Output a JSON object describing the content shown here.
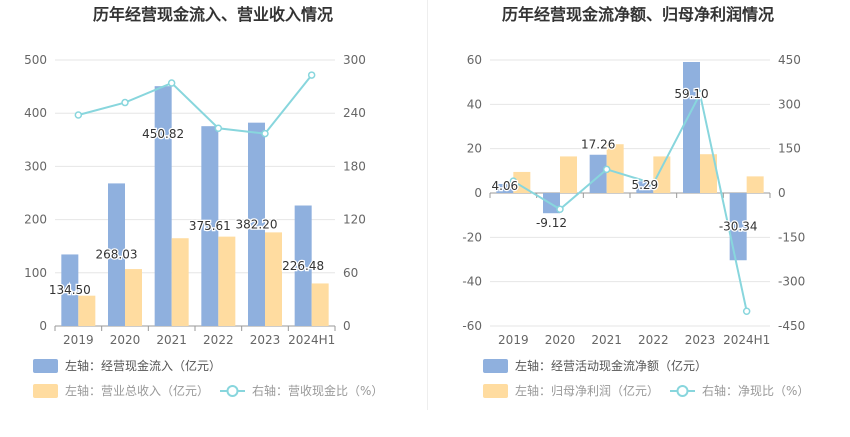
{
  "colors": {
    "bar_primary": "#8fb0de",
    "bar_secondary": "#ffdca0",
    "line": "#88d6dd",
    "grid": "#e6e6e6",
    "axis_text": "#666666",
    "title_text": "#333333",
    "label_text": "#333333"
  },
  "chart_data": [
    {
      "type": "bar",
      "title": "历年经营现金流入、营业收入情况",
      "categories": [
        "2019",
        "2020",
        "2021",
        "2022",
        "2023",
        "2024H1"
      ],
      "left_axis": {
        "ticks": [
          "0",
          "100",
          "200",
          "300",
          "400",
          "500"
        ],
        "ylim": [
          0,
          500
        ]
      },
      "right_axis": {
        "ticks": [
          "0",
          "60",
          "120",
          "180",
          "240",
          "300"
        ],
        "ylim": [
          0,
          300
        ]
      },
      "series": [
        {
          "name": "左轴：经营现金流入（亿元）",
          "type": "bar",
          "axis": "left",
          "values": [
            134.5,
            268.03,
            450.82,
            375.61,
            382.2,
            226.48
          ],
          "labels": [
            "134.50",
            "268.03",
            "450.82",
            "375.61",
            "382.20",
            "226.48"
          ]
        },
        {
          "name": "左轴：营业总收入（亿元）",
          "type": "bar",
          "axis": "left",
          "values": [
            57,
            107,
            165,
            168,
            176,
            80
          ]
        },
        {
          "name": "右轴：营收现金比（%）",
          "type": "line",
          "axis": "right",
          "values": [
            238,
            252,
            274,
            223,
            217,
            283
          ]
        }
      ],
      "legend_position": "bottom-left"
    },
    {
      "type": "bar",
      "title": "历年经营现金流净额、归母净利润情况",
      "categories": [
        "2019",
        "2020",
        "2021",
        "2022",
        "2023",
        "2024H1"
      ],
      "left_axis": {
        "ticks": [
          "-60",
          "-40",
          "-20",
          "0",
          "20",
          "40",
          "60"
        ],
        "ylim": [
          -60,
          60
        ]
      },
      "right_axis": {
        "ticks": [
          "-450",
          "-300",
          "-150",
          "0",
          "150",
          "300",
          "450"
        ],
        "ylim": [
          -450,
          450
        ]
      },
      "series": [
        {
          "name": "左轴：经营活动现金流净额（亿元）",
          "type": "bar",
          "axis": "left",
          "values": [
            4.06,
            -9.12,
            17.26,
            5.29,
            59.1,
            -30.34
          ],
          "labels": [
            "4.06",
            "-9.12",
            "17.26",
            "5.29",
            "59.10",
            "-30.34"
          ]
        },
        {
          "name": "左轴：归母净利润（亿元）",
          "type": "bar",
          "axis": "left",
          "values": [
            9.5,
            16.5,
            22,
            16.5,
            17.5,
            7.5
          ]
        },
        {
          "name": "右轴：净现比（%）",
          "type": "line",
          "axis": "right",
          "values": [
            40,
            -55,
            80,
            32,
            335,
            -400
          ]
        }
      ],
      "legend_position": "bottom-left"
    }
  ]
}
